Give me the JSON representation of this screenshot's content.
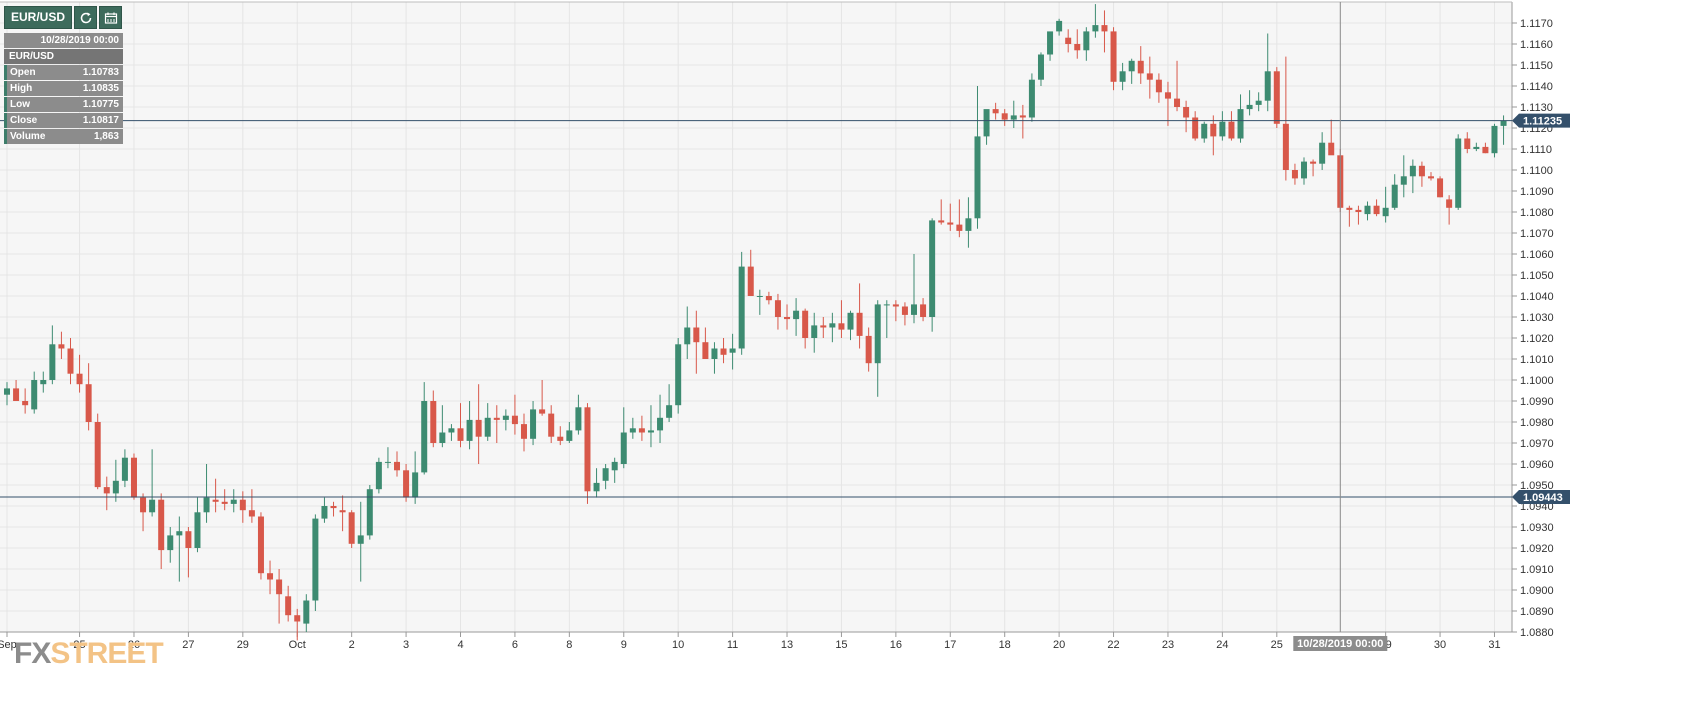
{
  "toolbar": {
    "symbol": "EUR/USD",
    "refresh_icon": "refresh-icon",
    "calendar_icon": "calendar-icon"
  },
  "info_panel": {
    "date": "10/28/2019 00:00",
    "symbol": "EUR/USD",
    "rows": [
      {
        "label": "Open",
        "value": "1.10783"
      },
      {
        "label": "High",
        "value": "1.10835"
      },
      {
        "label": "Low",
        "value": "1.10775"
      },
      {
        "label": "Close",
        "value": "1.10817"
      },
      {
        "label": "Volume",
        "value": "1,863"
      }
    ]
  },
  "logo": {
    "fx": "FX",
    "street": "STREET"
  },
  "colors": {
    "up": "#3d8b71",
    "down": "#d8584a",
    "background": "#f6f6f6",
    "grid": "#e5e5e5",
    "marker": "#34506b"
  },
  "chart_data": {
    "type": "candlestick",
    "symbol": "EUR/USD",
    "ylim": [
      1.088,
      1.118
    ],
    "y_ticks": [
      "1.0880",
      "1.0890",
      "1.0900",
      "1.0910",
      "1.0920",
      "1.0930",
      "1.0940",
      "1.0950",
      "1.0960",
      "1.0970",
      "1.0980",
      "1.0990",
      "1.1000",
      "1.1010",
      "1.1020",
      "1.1030",
      "1.1040",
      "1.1050",
      "1.1060",
      "1.1070",
      "1.1080",
      "1.1090",
      "1.1100",
      "1.1110",
      "1.1120",
      "1.1130",
      "1.1140",
      "1.1150",
      "1.1160",
      "1.1170"
    ],
    "x_ticks": [
      {
        "label": "Sep",
        "bar": 0
      },
      {
        "label": "25",
        "bar": 8
      },
      {
        "label": "26",
        "bar": 14
      },
      {
        "label": "27",
        "bar": 20
      },
      {
        "label": "29",
        "bar": 26
      },
      {
        "label": "Oct",
        "bar": 32
      },
      {
        "label": "2",
        "bar": 38
      },
      {
        "label": "3",
        "bar": 44
      },
      {
        "label": "4",
        "bar": 50
      },
      {
        "label": "6",
        "bar": 56
      },
      {
        "label": "8",
        "bar": 62
      },
      {
        "label": "9",
        "bar": 68
      },
      {
        "label": "10",
        "bar": 74
      },
      {
        "label": "11",
        "bar": 80
      },
      {
        "label": "13",
        "bar": 86
      },
      {
        "label": "15",
        "bar": 92
      },
      {
        "label": "16",
        "bar": 98
      },
      {
        "label": "17",
        "bar": 104
      },
      {
        "label": "18",
        "bar": 110
      },
      {
        "label": "20",
        "bar": 116
      },
      {
        "label": "22",
        "bar": 122
      },
      {
        "label": "23",
        "bar": 128
      },
      {
        "label": "24",
        "bar": 134
      },
      {
        "label": "25",
        "bar": 140
      },
      {
        "label": "29",
        "bar": 152
      },
      {
        "label": "30",
        "bar": 158
      },
      {
        "label": "31",
        "bar": 164
      }
    ],
    "price_markers": [
      {
        "label": "1.11235",
        "value": 1.11235
      },
      {
        "label": "1.09443",
        "value": 1.09443
      }
    ],
    "crosshair": {
      "bar": 147,
      "label": "10/28/2019 00:00"
    },
    "candles": [
      [
        1.0993,
        1.0999,
        1.0988,
        1.0996
      ],
      [
        1.0996,
        1.1,
        1.099,
        1.099
      ],
      [
        1.099,
        1.0996,
        1.0984,
        1.0988
      ],
      [
        1.0986,
        1.1004,
        1.0984,
        1.1
      ],
      [
        1.0998,
        1.1004,
        1.0994,
        1.1
      ],
      [
        1.1,
        1.1026,
        1.0998,
        1.1017
      ],
      [
        1.1017,
        1.1023,
        1.101,
        1.1015
      ],
      [
        1.1015,
        1.102,
        1.0998,
        1.1003
      ],
      [
        1.1003,
        1.1012,
        1.0994,
        1.0998
      ],
      [
        1.0998,
        1.1008,
        1.0976,
        1.098
      ],
      [
        1.098,
        1.0984,
        1.0948,
        1.0949
      ],
      [
        1.0949,
        1.0954,
        1.0938,
        1.0946
      ],
      [
        1.0946,
        1.0962,
        1.0942,
        1.0952
      ],
      [
        1.0952,
        1.0967,
        1.0949,
        1.0963
      ],
      [
        1.0963,
        1.0965,
        1.0943,
        1.0944
      ],
      [
        1.0944,
        1.0946,
        1.0928,
        1.0937
      ],
      [
        1.0937,
        1.0967,
        1.0935,
        1.0943
      ],
      [
        1.0943,
        1.0946,
        1.091,
        1.0919
      ],
      [
        1.0919,
        1.093,
        1.0913,
        1.0926
      ],
      [
        1.0926,
        1.0935,
        1.0904,
        1.0928
      ],
      [
        1.0928,
        1.093,
        1.0906,
        1.092
      ],
      [
        1.092,
        1.0944,
        1.0918,
        1.0937
      ],
      [
        1.0937,
        1.096,
        1.0932,
        1.0944
      ],
      [
        1.0943,
        1.0953,
        1.0937,
        1.0942
      ],
      [
        1.0942,
        1.0948,
        1.0938,
        1.0941
      ],
      [
        1.0941,
        1.0948,
        1.0937,
        1.0943
      ],
      [
        1.0943,
        1.0947,
        1.0932,
        1.0938
      ],
      [
        1.0938,
        1.0948,
        1.0932,
        1.0935
      ],
      [
        1.0935,
        1.0937,
        1.0905,
        1.0908
      ],
      [
        1.0908,
        1.0914,
        1.0898,
        1.0905
      ],
      [
        1.0905,
        1.091,
        1.0884,
        1.0898
      ],
      [
        1.0897,
        1.0902,
        1.0885,
        1.0888
      ],
      [
        1.0888,
        1.0891,
        1.0876,
        1.0885
      ],
      [
        1.0884,
        1.0898,
        1.088,
        1.0895
      ],
      [
        1.0895,
        1.0936,
        1.089,
        1.0934
      ],
      [
        1.0934,
        1.0944,
        1.0932,
        1.094
      ],
      [
        1.094,
        1.0942,
        1.0935,
        1.0939
      ],
      [
        1.0938,
        1.0945,
        1.0928,
        1.0937
      ],
      [
        1.0937,
        1.0938,
        1.092,
        1.0922
      ],
      [
        1.0922,
        1.0942,
        1.0904,
        1.0926
      ],
      [
        1.0926,
        1.095,
        1.0924,
        1.0948
      ],
      [
        1.0948,
        1.0963,
        1.0946,
        1.0961
      ],
      [
        1.0961,
        1.0968,
        1.0958,
        1.0961
      ],
      [
        1.0961,
        1.0966,
        1.0954,
        1.0957
      ],
      [
        1.0957,
        1.096,
        1.0942,
        1.0944
      ],
      [
        1.0944,
        1.0966,
        1.0941,
        1.0956
      ],
      [
        1.0956,
        1.0999,
        1.0955,
        1.099
      ],
      [
        1.099,
        1.0995,
        1.0968,
        1.097
      ],
      [
        1.097,
        1.0988,
        1.0968,
        1.0975
      ],
      [
        1.0975,
        1.0979,
        1.0971,
        1.0977
      ],
      [
        1.0977,
        1.0989,
        1.0968,
        1.0971
      ],
      [
        1.0971,
        1.099,
        1.0967,
        1.0981
      ],
      [
        1.0981,
        1.0998,
        1.096,
        1.0973
      ],
      [
        1.0973,
        1.0989,
        1.0971,
        1.0982
      ],
      [
        1.0982,
        1.0988,
        1.097,
        1.0981
      ],
      [
        1.0981,
        1.0986,
        1.0976,
        1.0983
      ],
      [
        1.0983,
        1.0993,
        1.0974,
        1.0979
      ],
      [
        1.0979,
        1.0984,
        1.0966,
        1.0972
      ],
      [
        1.0972,
        1.099,
        1.0969,
        1.0986
      ],
      [
        1.0986,
        1.1,
        1.0983,
        1.0984
      ],
      [
        1.0984,
        1.0988,
        1.097,
        1.0973
      ],
      [
        1.0973,
        1.0978,
        1.0969,
        1.0971
      ],
      [
        1.0971,
        1.098,
        1.097,
        1.0976
      ],
      [
        1.0976,
        1.0993,
        1.0974,
        1.0987
      ],
      [
        1.0987,
        1.0989,
        1.0941,
        1.0947
      ],
      [
        1.0947,
        1.0958,
        1.0944,
        1.0951
      ],
      [
        1.0952,
        1.096,
        1.0948,
        1.0958
      ],
      [
        1.0957,
        1.0963,
        1.0951,
        1.0961
      ],
      [
        1.096,
        1.0987,
        1.0958,
        1.0975
      ],
      [
        1.0975,
        1.0982,
        1.0972,
        1.0977
      ],
      [
        1.0977,
        1.0983,
        1.0971,
        1.0975
      ],
      [
        1.0975,
        1.0988,
        1.0968,
        1.0976
      ],
      [
        1.0976,
        1.0993,
        1.097,
        1.0982
      ],
      [
        1.0982,
        1.0998,
        1.098,
        1.0988
      ],
      [
        1.0988,
        1.102,
        1.0984,
        1.1017
      ],
      [
        1.1017,
        1.1035,
        1.101,
        1.1025
      ],
      [
        1.1025,
        1.1033,
        1.1003,
        1.1018
      ],
      [
        1.1018,
        1.1025,
        1.101,
        1.101
      ],
      [
        1.101,
        1.1018,
        1.1003,
        1.1015
      ],
      [
        1.1015,
        1.102,
        1.1008,
        1.1012
      ],
      [
        1.1013,
        1.1022,
        1.1005,
        1.1015
      ],
      [
        1.1015,
        1.1061,
        1.1012,
        1.1054
      ],
      [
        1.1054,
        1.1062,
        1.104,
        1.104
      ],
      [
        1.104,
        1.1043,
        1.1031,
        1.104
      ],
      [
        1.104,
        1.1042,
        1.1036,
        1.1038
      ],
      [
        1.1038,
        1.1041,
        1.1024,
        1.103
      ],
      [
        1.103,
        1.1036,
        1.1024,
        1.1029
      ],
      [
        1.1029,
        1.1039,
        1.1021,
        1.1033
      ],
      [
        1.1033,
        1.1034,
        1.1015,
        1.102
      ],
      [
        1.102,
        1.1032,
        1.1013,
        1.1026
      ],
      [
        1.1026,
        1.103,
        1.102,
        1.1025
      ],
      [
        1.1025,
        1.1032,
        1.1018,
        1.1027
      ],
      [
        1.1027,
        1.1038,
        1.102,
        1.1024
      ],
      [
        1.1024,
        1.1033,
        1.1019,
        1.1032
      ],
      [
        1.1032,
        1.1046,
        1.1015,
        1.1021
      ],
      [
        1.1021,
        1.1025,
        1.1004,
        1.1008
      ],
      [
        1.1008,
        1.1038,
        1.0992,
        1.1036
      ],
      [
        1.1036,
        1.1038,
        1.102,
        1.1036
      ],
      [
        1.1036,
        1.1038,
        1.1028,
        1.1035
      ],
      [
        1.1035,
        1.1037,
        1.1026,
        1.1031
      ],
      [
        1.1031,
        1.106,
        1.1027,
        1.1036
      ],
      [
        1.1036,
        1.1039,
        1.1028,
        1.103
      ],
      [
        1.103,
        1.1077,
        1.1023,
        1.1076
      ],
      [
        1.1076,
        1.1086,
        1.1074,
        1.1075
      ],
      [
        1.1075,
        1.1084,
        1.1071,
        1.1074
      ],
      [
        1.1074,
        1.1086,
        1.1068,
        1.1071
      ],
      [
        1.1071,
        1.1087,
        1.1063,
        1.1077
      ],
      [
        1.1077,
        1.114,
        1.1072,
        1.1116
      ],
      [
        1.1116,
        1.1128,
        1.1112,
        1.1129
      ],
      [
        1.1129,
        1.1132,
        1.1124,
        1.1127
      ],
      [
        1.1127,
        1.1129,
        1.1121,
        1.1124
      ],
      [
        1.1124,
        1.1133,
        1.112,
        1.1126
      ],
      [
        1.1126,
        1.1131,
        1.1115,
        1.1125
      ],
      [
        1.1125,
        1.1146,
        1.1123,
        1.1143
      ],
      [
        1.1143,
        1.1156,
        1.114,
        1.1155
      ],
      [
        1.1155,
        1.1165,
        1.1152,
        1.1166
      ],
      [
        1.1166,
        1.1172,
        1.1164,
        1.1171
      ],
      [
        1.1163,
        1.1167,
        1.1156,
        1.116
      ],
      [
        1.116,
        1.1167,
        1.1153,
        1.1157
      ],
      [
        1.1157,
        1.1168,
        1.1152,
        1.1166
      ],
      [
        1.1166,
        1.1179,
        1.1163,
        1.1169
      ],
      [
        1.1169,
        1.1176,
        1.1156,
        1.1166
      ],
      [
        1.1166,
        1.1168,
        1.1138,
        1.1142
      ],
      [
        1.1142,
        1.1151,
        1.1138,
        1.1147
      ],
      [
        1.1147,
        1.1153,
        1.1141,
        1.1152
      ],
      [
        1.1152,
        1.1159,
        1.1141,
        1.1146
      ],
      [
        1.1146,
        1.1154,
        1.1134,
        1.1143
      ],
      [
        1.1143,
        1.1146,
        1.1132,
        1.1137
      ],
      [
        1.1137,
        1.1142,
        1.1121,
        1.1134
      ],
      [
        1.1134,
        1.1152,
        1.1128,
        1.113
      ],
      [
        1.113,
        1.1133,
        1.1118,
        1.1125
      ],
      [
        1.1125,
        1.1128,
        1.1114,
        1.1115
      ],
      [
        1.1115,
        1.1123,
        1.1113,
        1.1122
      ],
      [
        1.1122,
        1.1126,
        1.1107,
        1.1116
      ],
      [
        1.1116,
        1.1128,
        1.1114,
        1.1123
      ],
      [
        1.1123,
        1.1128,
        1.1114,
        1.1115
      ],
      [
        1.1115,
        1.1136,
        1.1113,
        1.1129
      ],
      [
        1.1129,
        1.1138,
        1.1126,
        1.1131
      ],
      [
        1.1131,
        1.1137,
        1.1128,
        1.1133
      ],
      [
        1.1133,
        1.1165,
        1.1128,
        1.1147
      ],
      [
        1.1147,
        1.1149,
        1.112,
        1.1122
      ],
      [
        1.1122,
        1.1154,
        1.1095,
        1.11
      ],
      [
        1.11,
        1.1103,
        1.1093,
        1.1096
      ],
      [
        1.1096,
        1.1106,
        1.1093,
        1.1104
      ],
      [
        1.1104,
        1.1105,
        1.1097,
        1.1103
      ],
      [
        1.1103,
        1.1118,
        1.11,
        1.1113
      ],
      [
        1.1113,
        1.1124,
        1.1108,
        1.1107
      ],
      [
        1.1107,
        1.111,
        1.108,
        1.1082
      ],
      [
        1.1082,
        1.1083,
        1.1073,
        1.1081
      ],
      [
        1.1081,
        1.1083,
        1.1074,
        1.108
      ],
      [
        1.1079,
        1.1085,
        1.1076,
        1.1083
      ],
      [
        1.1083,
        1.1086,
        1.1078,
        1.1079
      ],
      [
        1.1078,
        1.1092,
        1.1075,
        1.1082
      ],
      [
        1.1082,
        1.1098,
        1.1081,
        1.1093
      ],
      [
        1.1093,
        1.1107,
        1.1087,
        1.1097
      ],
      [
        1.1097,
        1.1105,
        1.1089,
        1.1102
      ],
      [
        1.1102,
        1.1104,
        1.1092,
        1.1097
      ],
      [
        1.1097,
        1.1099,
        1.1095,
        1.1096
      ],
      [
        1.1096,
        1.1097,
        1.1087,
        1.1087
      ],
      [
        1.1086,
        1.1088,
        1.1074,
        1.1082
      ],
      [
        1.1082,
        1.1117,
        1.1081,
        1.1115
      ],
      [
        1.1115,
        1.1118,
        1.1108,
        1.111
      ],
      [
        1.111,
        1.1113,
        1.1109,
        1.1111
      ],
      [
        1.1111,
        1.1113,
        1.1108,
        1.1108
      ],
      [
        1.1108,
        1.1122,
        1.1106,
        1.1121
      ],
      [
        1.1121,
        1.1126,
        1.1112,
        1.11235
      ]
    ]
  }
}
